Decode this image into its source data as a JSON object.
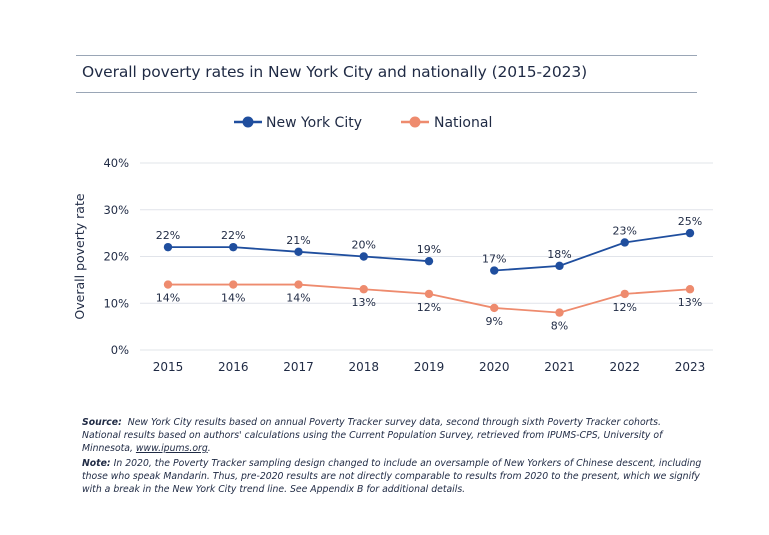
{
  "title": "Overall poverty rates in New York City and nationally (2015-2023)",
  "chart_data": {
    "type": "line",
    "title": "Overall poverty rates in New York City and nationally (2015-2023)",
    "xlabel": "",
    "ylabel": "Overall poverty rate",
    "categories": [
      "2015",
      "2016",
      "2017",
      "2018",
      "2019",
      "2020",
      "2021",
      "2022",
      "2023"
    ],
    "ylim": [
      0,
      40
    ],
    "yticks": [
      0,
      10,
      20,
      30,
      40
    ],
    "ytick_labels": [
      "0%",
      "10%",
      "20%",
      "30%",
      "40%"
    ],
    "grid": true,
    "legend_position": "top-center",
    "series": [
      {
        "name": "New York City",
        "color": "#1f4e9e",
        "values": [
          22,
          22,
          21,
          20,
          19,
          17,
          18,
          23,
          25
        ],
        "labels": [
          "22%",
          "22%",
          "21%",
          "20%",
          "19%",
          "17%",
          "18%",
          "23%",
          "25%"
        ],
        "label_position": "above",
        "break_after": "2019"
      },
      {
        "name": "National",
        "color": "#ee8b6e",
        "values": [
          14,
          14,
          14,
          13,
          12,
          9,
          8,
          12,
          13
        ],
        "labels": [
          "14%",
          "14%",
          "14%",
          "13%",
          "12%",
          "9%",
          "8%",
          "12%",
          "13%"
        ],
        "label_position": "below"
      }
    ]
  },
  "notes": {
    "source_label": "Source:",
    "source_text": "New York City results based on annual Poverty Tracker survey data, second through sixth Poverty Tracker cohorts. National results based on authors' calculations using the Current Population Survey, retrieved from IPUMS-CPS, University of Minnesota,",
    "source_link": "www.ipums.org",
    "note_label": "Note:",
    "note_text": "In 2020, the Poverty Tracker sampling design changed to include an oversample of New Yorkers of Chinese descent, including those who speak Mandarin. Thus, pre-2020 results are not directly comparable to results from 2020 to the present, which we signify with a break in the New York City trend line. See Appendix B for additional details."
  }
}
